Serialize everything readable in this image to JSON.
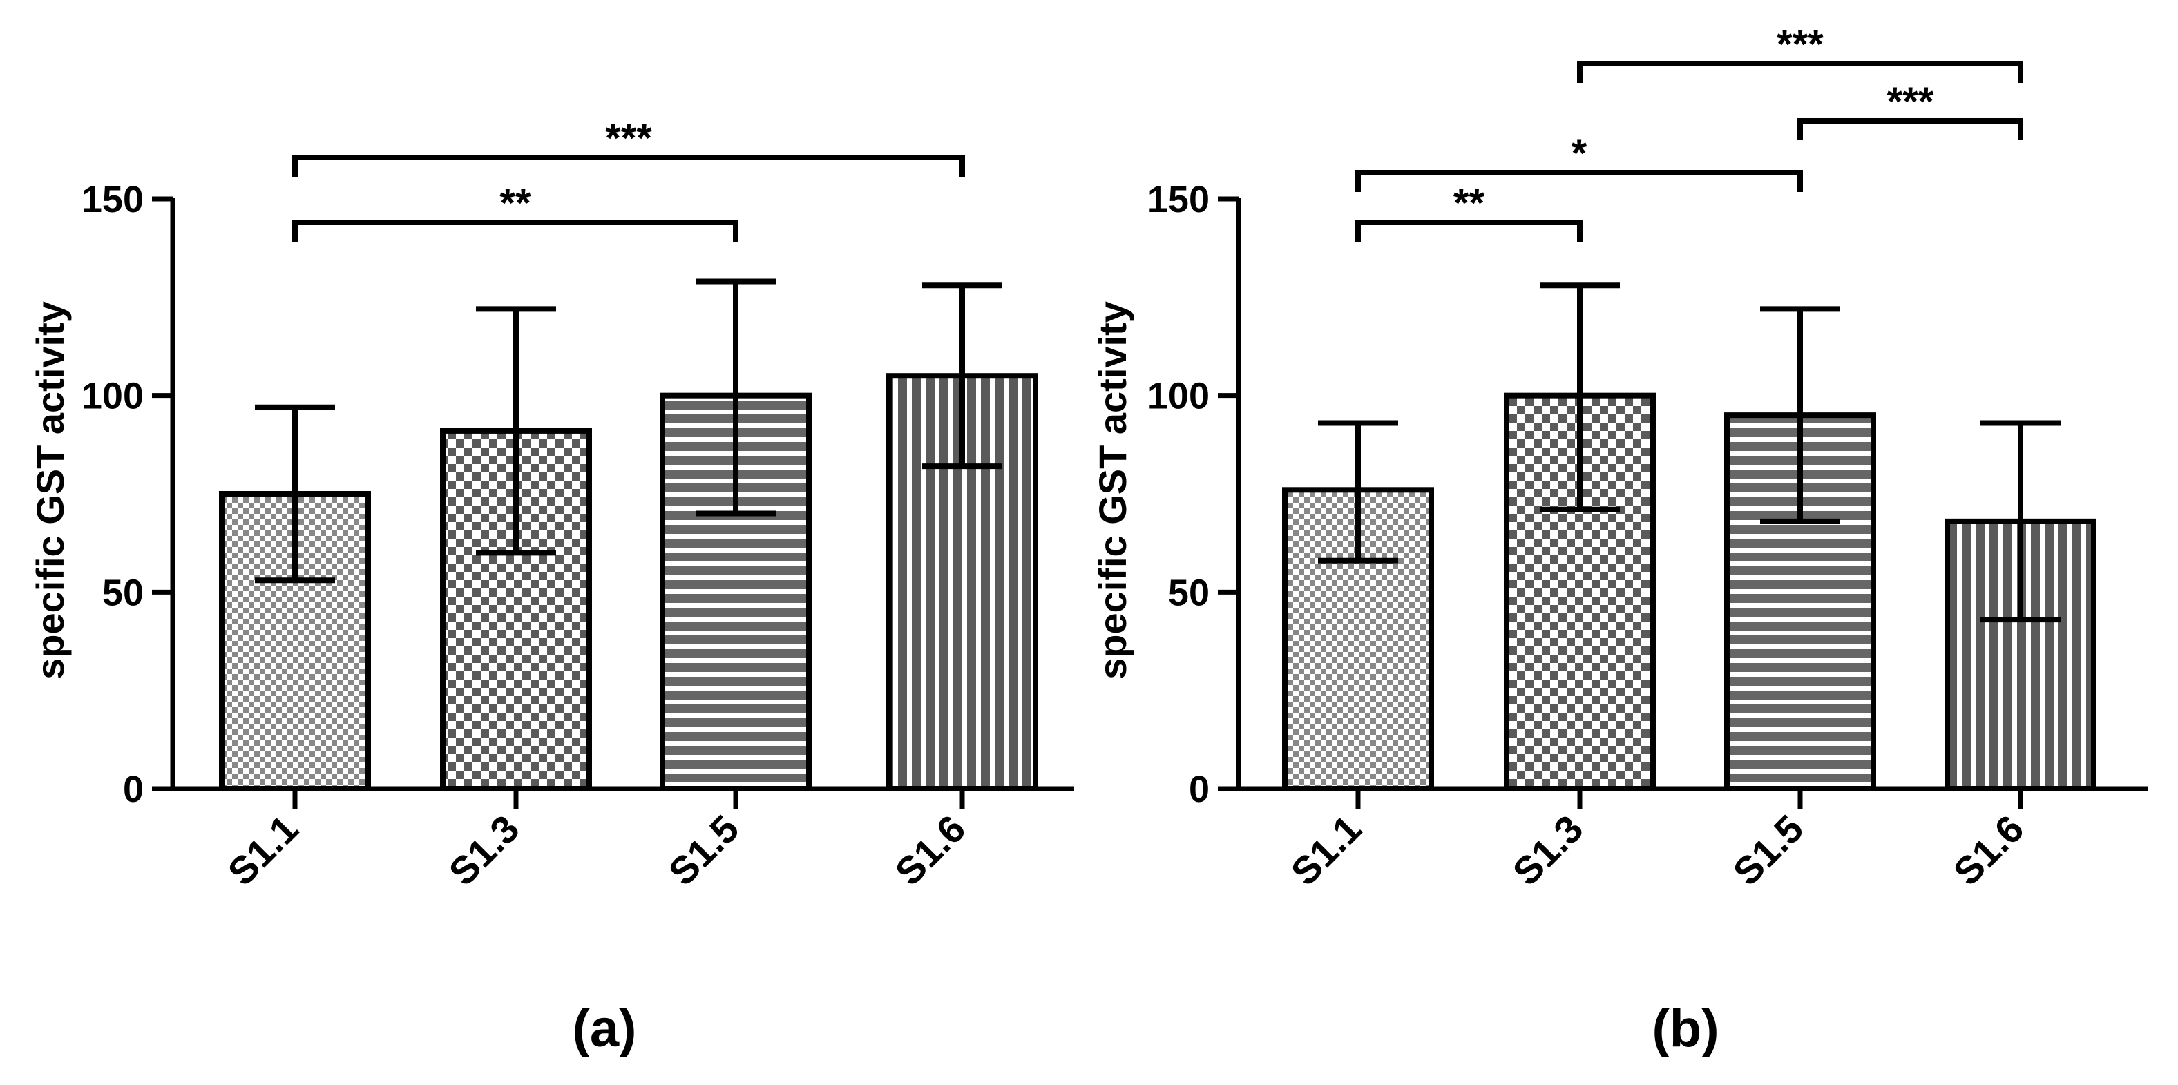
{
  "colors": {
    "ink": "#000000",
    "background": "#ffffff",
    "bar_fill": "#ffffff"
  },
  "chart_data": [
    {
      "type": "bar",
      "panel_label": "(a)",
      "ylabel": "specific GST activity",
      "xlabel": "",
      "ylim": [
        0,
        150
      ],
      "yticks": [
        0,
        50,
        100,
        150
      ],
      "grid": false,
      "categories": [
        "S1.1",
        "S1.3",
        "S1.5",
        "S1.6"
      ],
      "patterns": [
        "fine-checker",
        "checker",
        "horizontal-lines",
        "vertical-lines"
      ],
      "values": [
        75,
        91,
        100,
        105
      ],
      "error_low": [
        53,
        60,
        70,
        82
      ],
      "error_high": [
        97,
        122,
        129,
        128
      ],
      "significance": [
        {
          "from": "S1.1",
          "to": "S1.5",
          "label": "**"
        },
        {
          "from": "S1.1",
          "to": "S1.6",
          "label": "***"
        }
      ]
    },
    {
      "type": "bar",
      "panel_label": "(b)",
      "ylabel": "specific GST activity",
      "xlabel": "",
      "ylim": [
        0,
        150
      ],
      "yticks": [
        0,
        50,
        100,
        150
      ],
      "grid": false,
      "categories": [
        "S1.1",
        "S1.3",
        "S1.5",
        "S1.6"
      ],
      "patterns": [
        "fine-checker",
        "checker",
        "horizontal-lines",
        "vertical-lines"
      ],
      "values": [
        76,
        100,
        95,
        68
      ],
      "error_low": [
        58,
        71,
        68,
        43
      ],
      "error_high": [
        93,
        128,
        122,
        93
      ],
      "significance": [
        {
          "from": "S1.1",
          "to": "S1.3",
          "label": "**"
        },
        {
          "from": "S1.1",
          "to": "S1.5",
          "label": "*"
        },
        {
          "from": "S1.5",
          "to": "S1.6",
          "label": "***"
        },
        {
          "from": "S1.3",
          "to": "S1.6",
          "label": "***"
        }
      ]
    }
  ]
}
